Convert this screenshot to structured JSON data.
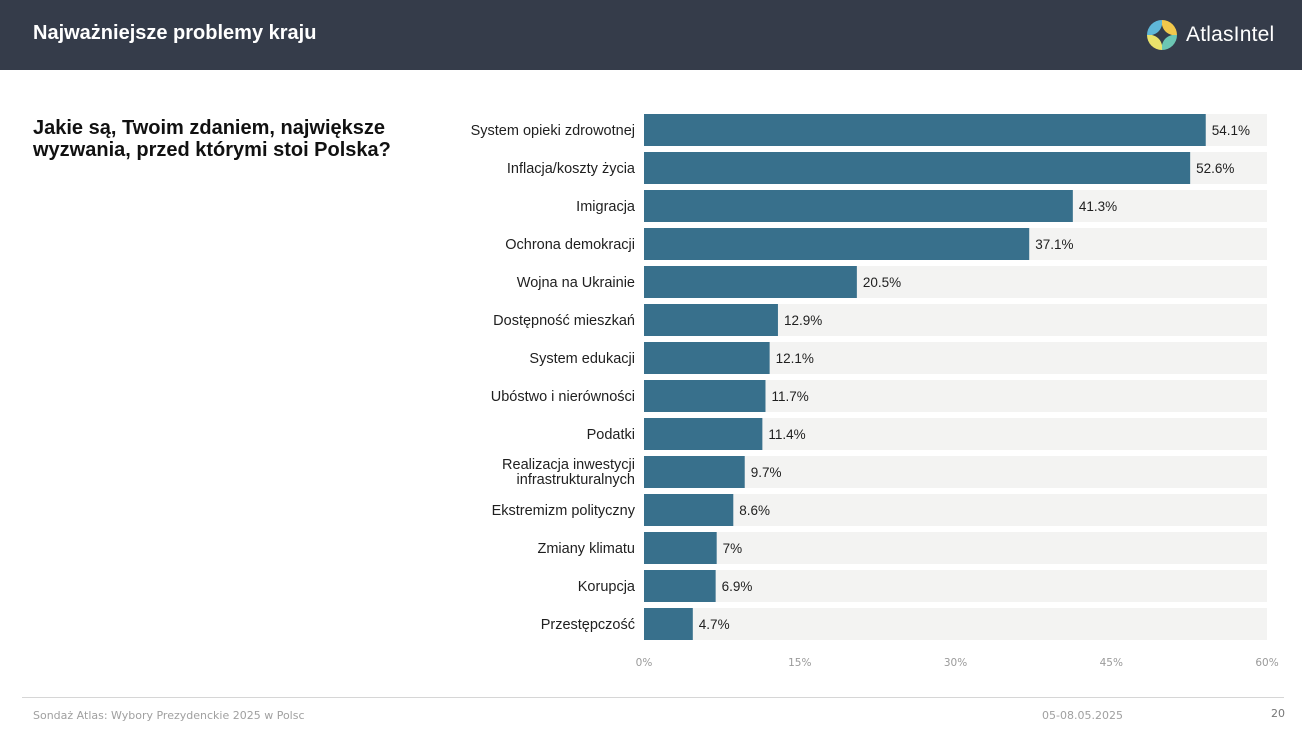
{
  "header": {
    "title": "Najważniejsze problemy kraju",
    "brand": {
      "name": "AtlasIntel",
      "icon": "atlasintel-logo-icon"
    }
  },
  "question": "Jakie są, Twoim zdaniem, największe wyzwania, przed którymi stoi Polska?",
  "footer": {
    "source": "Sondaż Atlas: Wybory Prezydenckie 2025 w Polsc",
    "date": "05-08.05.2025",
    "page": "20"
  },
  "colors": {
    "header_bg": "#353c4a",
    "bar": "#38708c",
    "track": "#f3f3f2"
  },
  "chart_data": {
    "type": "bar",
    "orientation": "horizontal",
    "categories": [
      [
        "System opieki zdrowotnej"
      ],
      [
        "Inflacja/koszty życia"
      ],
      [
        "Imigracja"
      ],
      [
        "Ochrona demokracji"
      ],
      [
        "Wojna na Ukrainie"
      ],
      [
        "Dostępność mieszkań"
      ],
      [
        "System edukacji"
      ],
      [
        "Ubóstwo i nierówności"
      ],
      [
        "Podatki"
      ],
      [
        "Realizacja inwestycji",
        "infrastrukturalnych"
      ],
      [
        "Ekstremizm polityczny"
      ],
      [
        "Zmiany klimatu"
      ],
      [
        "Korupcja"
      ],
      [
        "Przestępczość"
      ]
    ],
    "values": [
      54.1,
      52.6,
      41.3,
      37.1,
      20.5,
      12.9,
      12.1,
      11.7,
      11.4,
      9.7,
      8.6,
      7,
      6.9,
      4.7
    ],
    "value_labels": [
      "54.1%",
      "52.6%",
      "41.3%",
      "37.1%",
      "20.5%",
      "12.9%",
      "12.1%",
      "11.7%",
      "11.4%",
      "9.7%",
      "8.6%",
      "7%",
      "6.9%",
      "4.7%"
    ],
    "x_ticks": [
      0,
      15,
      30,
      45,
      60
    ],
    "x_tick_labels": [
      "0%",
      "15%",
      "30%",
      "45%",
      "60%"
    ],
    "xlim": [
      0,
      60
    ],
    "title": "",
    "xlabel": "",
    "ylabel": "",
    "grid": false,
    "legend": "none"
  }
}
